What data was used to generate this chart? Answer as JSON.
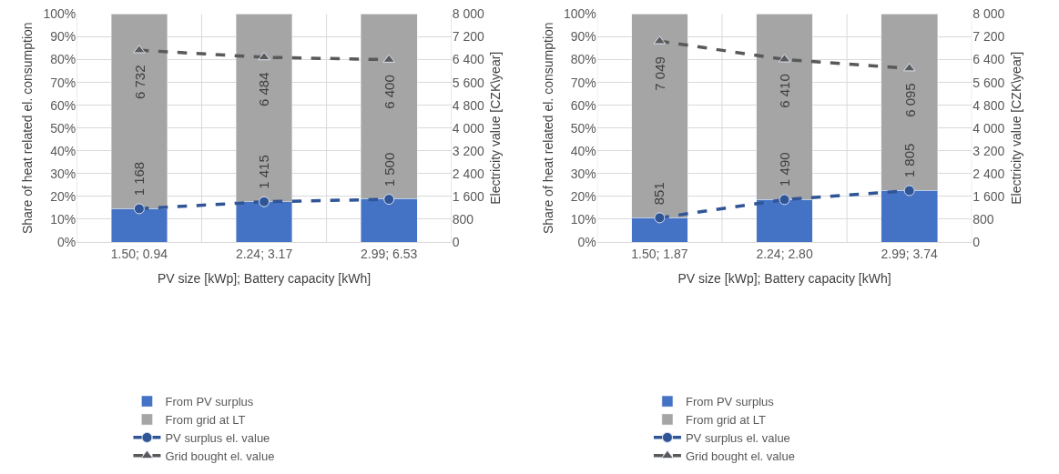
{
  "chart_data": [
    {
      "type": "bar",
      "stacked": true,
      "categories": [
        "1.50; 0.94",
        "2.24; 3.17",
        "2.99; 6.53"
      ],
      "xlabel": "PV size [kWp]; Battery capacity [kWh]",
      "ylabel": "Share of heat related el. consumption",
      "y2label": "Electricity value [CZK\\year]",
      "series": [
        {
          "name": "From PV surplus",
          "color": "#4472c4",
          "values": [
            14.7,
            17.7,
            19.0
          ]
        },
        {
          "name": "From grid at LT",
          "color": "#a5a5a5",
          "values": [
            85.3,
            82.3,
            81.0
          ]
        },
        {
          "name": "PV surplus el. value",
          "type": "line",
          "axis": "y2",
          "color": "#2f5597",
          "line_style": "dashed",
          "marker": "circle",
          "values": [
            1168,
            1415,
            1500
          ],
          "value_labels": [
            "1 168",
            "1 415",
            "1 500"
          ]
        },
        {
          "name": "Grid bought el. value",
          "type": "line",
          "axis": "y2",
          "color": "#595959",
          "line_style": "dashed",
          "marker": "triangle",
          "values": [
            6732,
            6484,
            6400
          ],
          "value_labels": [
            "6 732",
            "6 484",
            "6 400"
          ]
        }
      ],
      "ylim": [
        0,
        100
      ],
      "yticks": [
        {
          "value": 0,
          "label": "0%"
        },
        {
          "value": 10,
          "label": "10%"
        },
        {
          "value": 20,
          "label": "20%"
        },
        {
          "value": 30,
          "label": "30%"
        },
        {
          "value": 40,
          "label": "40%"
        },
        {
          "value": 50,
          "label": "50%"
        },
        {
          "value": 60,
          "label": "60%"
        },
        {
          "value": 70,
          "label": "70%"
        },
        {
          "value": 80,
          "label": "80%"
        },
        {
          "value": 90,
          "label": "90%"
        },
        {
          "value": 100,
          "label": "100%"
        }
      ],
      "y2lim": [
        0,
        8000
      ],
      "y2ticks": [
        0,
        800,
        {
          "value": 1600,
          "label": "1 600"
        },
        {
          "value": 2400,
          "label": "2 400"
        },
        {
          "value": 3200,
          "label": "3 200"
        },
        {
          "value": 4000,
          "label": "4 000"
        },
        {
          "value": 4800,
          "label": "4 800"
        },
        {
          "value": 5600,
          "label": "5 600"
        },
        {
          "value": 6400,
          "label": "6 400"
        },
        {
          "value": 7200,
          "label": "7 200"
        },
        {
          "value": 8000,
          "label": "8 000"
        }
      ],
      "grid": true,
      "legend": "bottom"
    },
    {
      "type": "bar",
      "stacked": true,
      "categories": [
        "1.50; 1.87",
        "2.24; 2.80",
        "2.99; 3.74"
      ],
      "xlabel": "PV size [kWp]; Battery capacity [kWh]",
      "ylabel": "Share of heat related el. consumption",
      "y2label": "Electricity value [CZK\\year]",
      "series": [
        {
          "name": "From PV surplus",
          "color": "#4472c4",
          "values": [
            10.6,
            18.6,
            22.7
          ]
        },
        {
          "name": "From grid at LT",
          "color": "#a5a5a5",
          "values": [
            89.4,
            81.4,
            77.3
          ]
        },
        {
          "name": "PV surplus el. value",
          "type": "line",
          "axis": "y2",
          "color": "#2f5597",
          "line_style": "dashed",
          "marker": "circle",
          "values": [
            851,
            1490,
            1805
          ],
          "value_labels": [
            "851",
            "1 490",
            "1 805"
          ]
        },
        {
          "name": "Grid bought el. value",
          "type": "line",
          "axis": "y2",
          "color": "#595959",
          "line_style": "dashed",
          "marker": "triangle",
          "values": [
            7049,
            6410,
            6095
          ],
          "value_labels": [
            "7 049",
            "6 410",
            "6 095"
          ]
        }
      ],
      "ylim": [
        0,
        100
      ],
      "yticks": [
        {
          "value": 0,
          "label": "0%"
        },
        {
          "value": 10,
          "label": "10%"
        },
        {
          "value": 20,
          "label": "20%"
        },
        {
          "value": 30,
          "label": "30%"
        },
        {
          "value": 40,
          "label": "40%"
        },
        {
          "value": 50,
          "label": "50%"
        },
        {
          "value": 60,
          "label": "60%"
        },
        {
          "value": 70,
          "label": "70%"
        },
        {
          "value": 80,
          "label": "80%"
        },
        {
          "value": 90,
          "label": "90%"
        },
        {
          "value": 100,
          "label": "100%"
        }
      ],
      "y2lim": [
        0,
        8000
      ],
      "y2ticks": [
        0,
        800,
        {
          "value": 1600,
          "label": "1 600"
        },
        {
          "value": 2400,
          "label": "2 400"
        },
        {
          "value": 3200,
          "label": "3 200"
        },
        {
          "value": 4000,
          "label": "4 000"
        },
        {
          "value": 4800,
          "label": "4 800"
        },
        {
          "value": 5600,
          "label": "5 600"
        },
        {
          "value": 6400,
          "label": "6 400"
        },
        {
          "value": 7200,
          "label": "7 200"
        },
        {
          "value": 8000,
          "label": "8 000"
        }
      ],
      "grid": true,
      "legend": "bottom"
    }
  ]
}
